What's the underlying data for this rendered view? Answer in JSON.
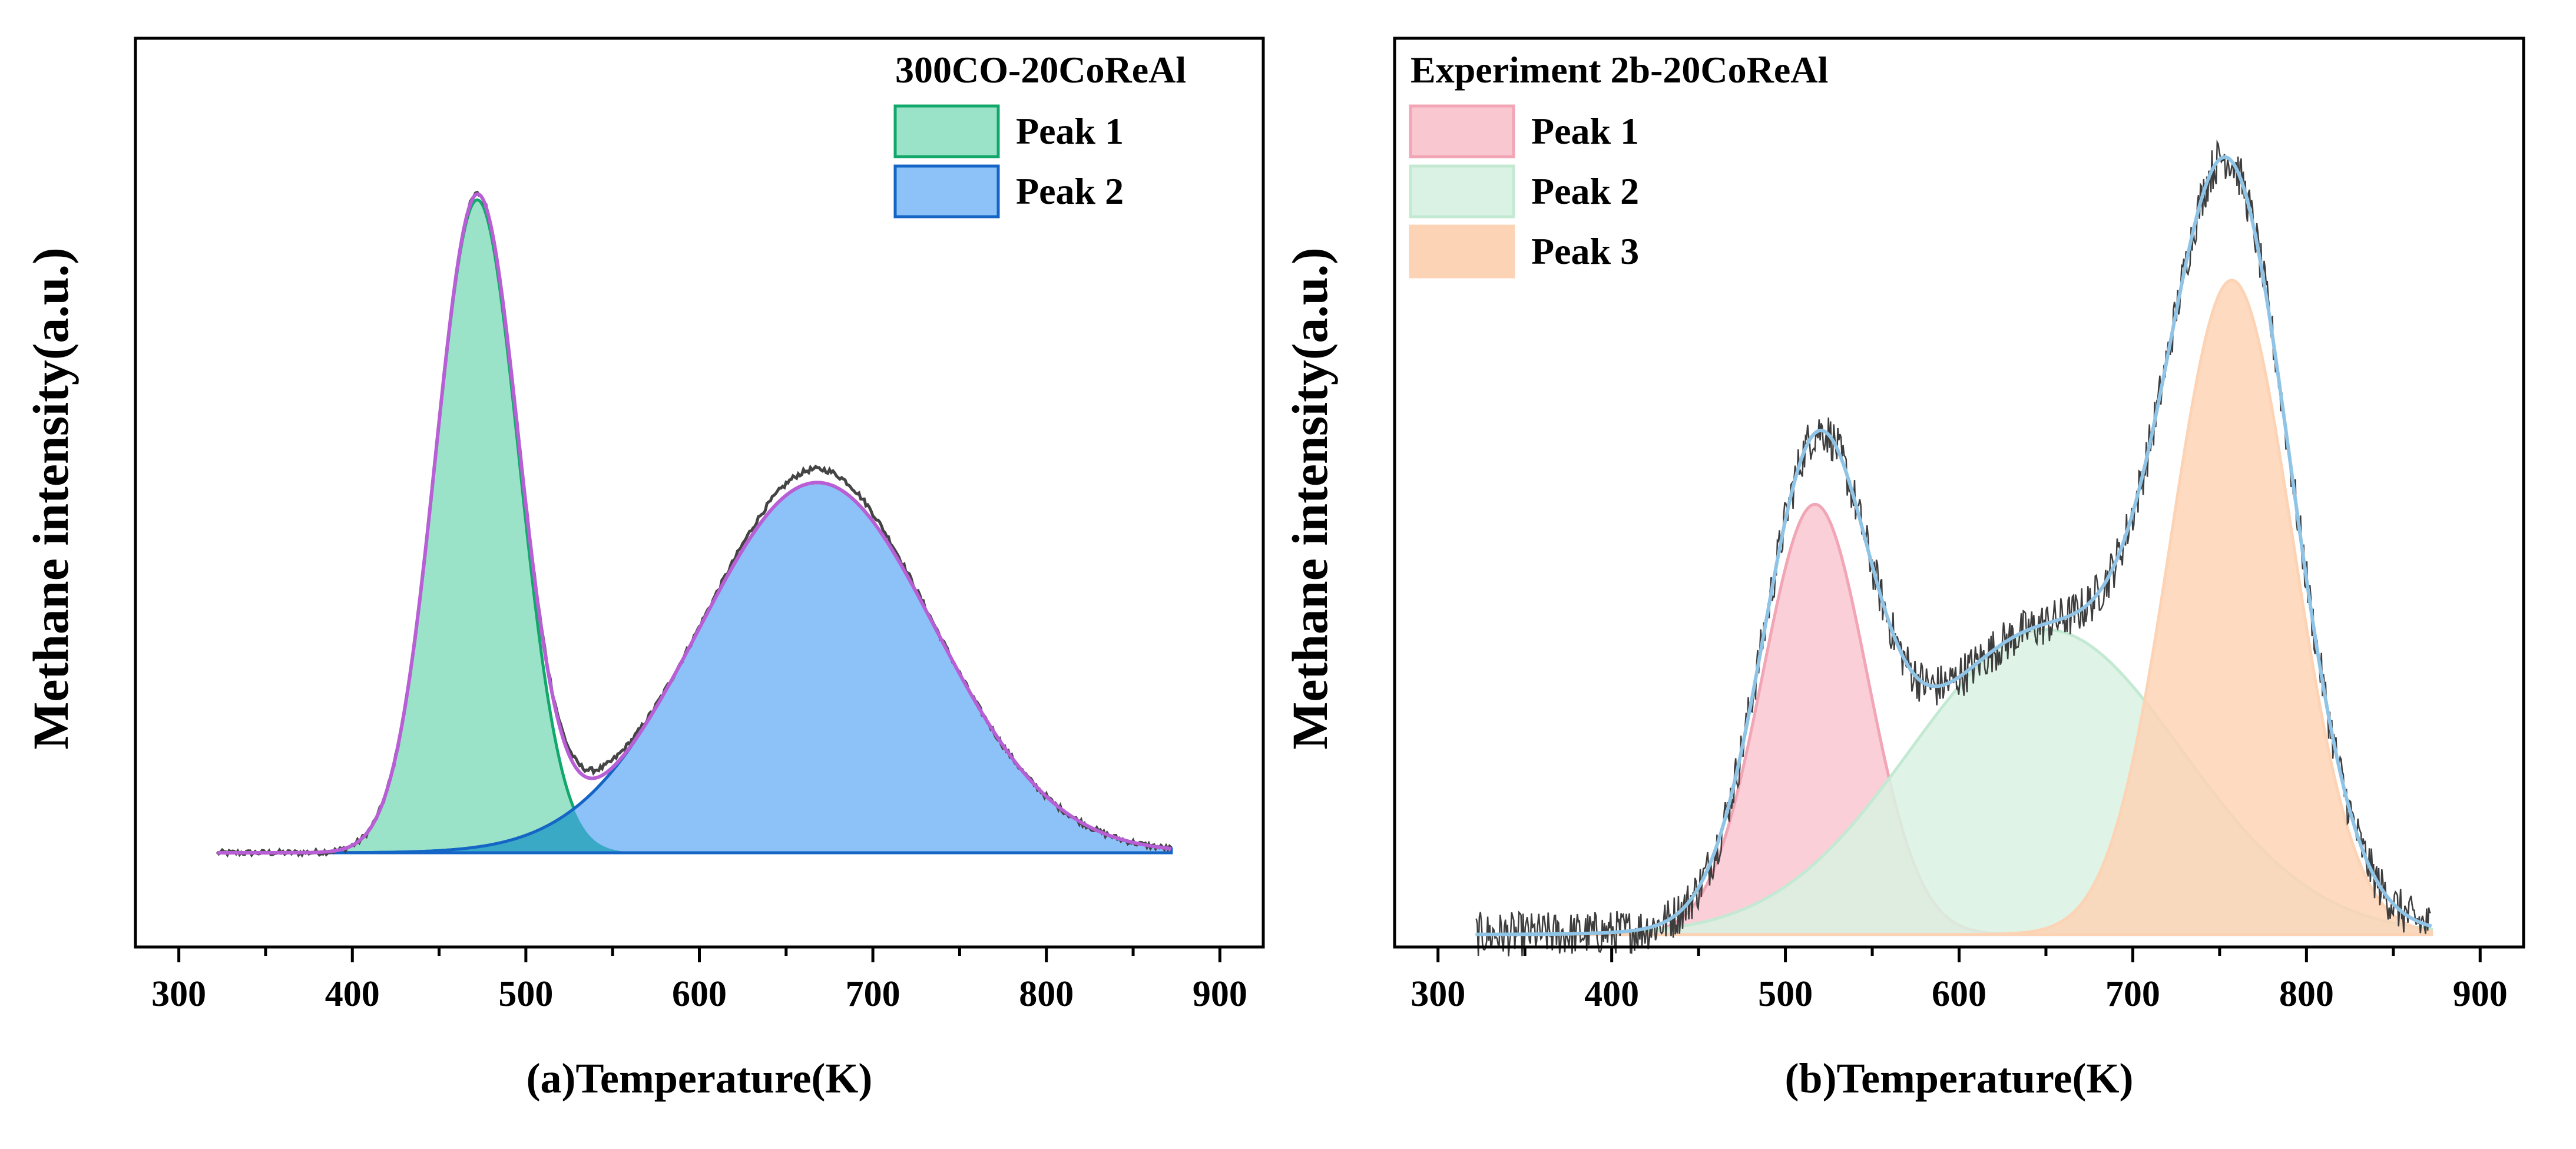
{
  "chart_data": [
    {
      "type": "area",
      "title": "300CO-20CoReAl",
      "xlabel": "(a)Temperature(K)",
      "ylabel": "Methane intensity(a.u.)",
      "xlim": [
        275,
        925
      ],
      "ylim": [
        -0.14,
        1.21
      ],
      "xticks": [
        300,
        400,
        500,
        600,
        700,
        800,
        900
      ],
      "y_ticks_labeled": false,
      "legend_position": "top-right",
      "legend_title": "300CO-20CoReAl",
      "x_range": [
        322,
        872
      ],
      "baseline": 0,
      "series": [
        {
          "name": "Peak 1",
          "kind": "gaussian",
          "center": 472,
          "height": 0.97,
          "width": 24,
          "fill": "#9be3c8",
          "stroke": "#13a86b",
          "in_legend": true
        },
        {
          "name": "Peak 2",
          "kind": "gaussian",
          "center": 668,
          "height": 0.55,
          "width": 68,
          "fill": "#8cc2f8",
          "stroke": "#1565c6",
          "in_legend": true
        },
        {
          "name": "Fitted envelope",
          "kind": "sum",
          "stroke": "#b85fd6",
          "in_legend": false
        },
        {
          "name": "Measured signal",
          "kind": "measured",
          "noise": 0.004,
          "stroke": "#444444",
          "in_legend": false
        }
      ],
      "overlap_color": "#3aa9c6"
    },
    {
      "type": "area",
      "title": "Experiment 2b-20CoReAl",
      "xlabel": "(b)Temperature(K)",
      "ylabel": "Methane intensity(a.u.)",
      "xlim": [
        275,
        925
      ],
      "ylim": [
        -0.014,
        1.0
      ],
      "xticks": [
        300,
        400,
        500,
        600,
        700,
        800,
        900
      ],
      "y_ticks_labeled": false,
      "legend_position": "top-left",
      "legend_title": "Experiment 2b-20CoReAl",
      "x_range": [
        322,
        872
      ],
      "baseline": 0,
      "series": [
        {
          "name": "Peak 1",
          "kind": "gaussian",
          "center": 517,
          "height": 0.48,
          "width": 30,
          "fill": "#f9c7d0",
          "stroke": "#f2a5b5",
          "in_legend": true
        },
        {
          "name": "Peak 2",
          "kind": "gaussian",
          "center": 650,
          "height": 0.34,
          "width": 78,
          "fill": "#d9f2e3",
          "stroke": "#c4e9d2",
          "in_legend": true
        },
        {
          "name": "Peak 3",
          "kind": "gaussian",
          "center": 757,
          "height": 0.73,
          "width": 35,
          "fill": "#fdd3b5",
          "stroke": "#fdd3b5",
          "in_legend": true
        },
        {
          "name": "Fitted envelope",
          "kind": "sum",
          "stroke": "#8fc4e6",
          "in_legend": false
        },
        {
          "name": "Measured signal",
          "kind": "measured",
          "noise": 0.025,
          "stroke": "#3d3d3d",
          "in_legend": false
        }
      ]
    }
  ]
}
